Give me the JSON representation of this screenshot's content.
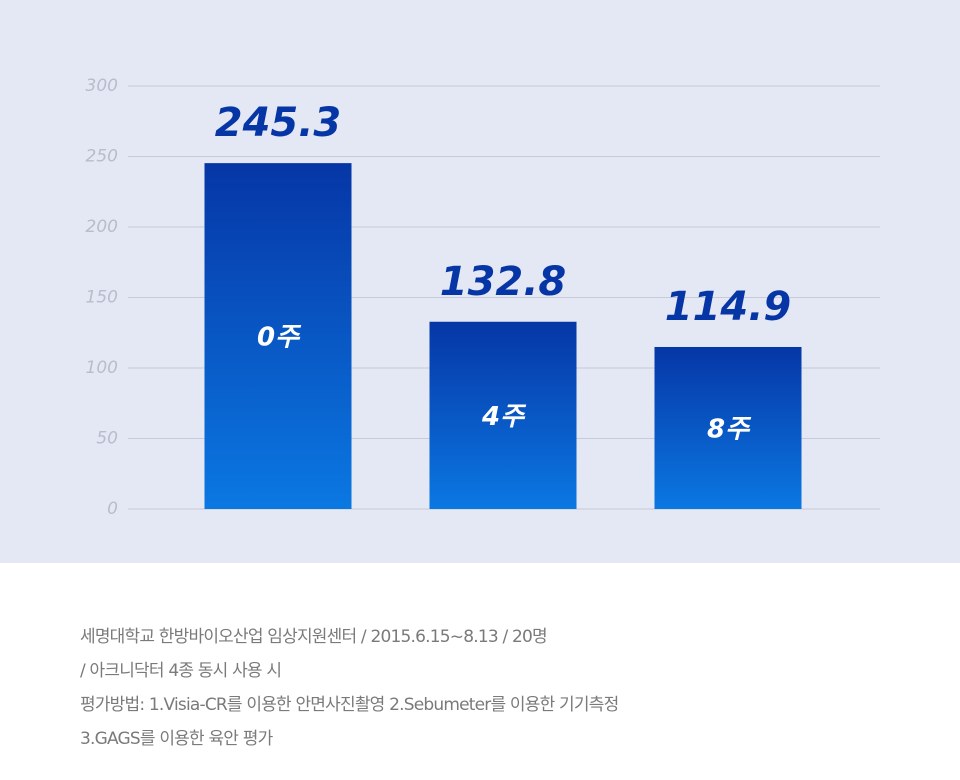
{
  "chart_data": {
    "type": "bar",
    "categories": [
      "0주",
      "4주",
      "8주"
    ],
    "values": [
      245.3,
      132.8,
      114.9
    ],
    "colors": [
      "#0636a6",
      "#0b78e2"
    ],
    "ylim": [
      0,
      300
    ],
    "yticks": [
      0,
      50,
      100,
      150,
      200,
      250,
      300
    ],
    "grid": true
  },
  "notes": [
    "세명대학교 한방바이오산업 임상지원센터 / 2015.6.15~8.13 / 20명",
    "/ 아크니닥터 4종 동시 사용 시",
    "평가방법: 1.Visia-CR를 이용한 안면사진촬영 2.Sebumeter를 이용한 기기측정",
    "3.GAGS를 이용한 육안 평가"
  ]
}
